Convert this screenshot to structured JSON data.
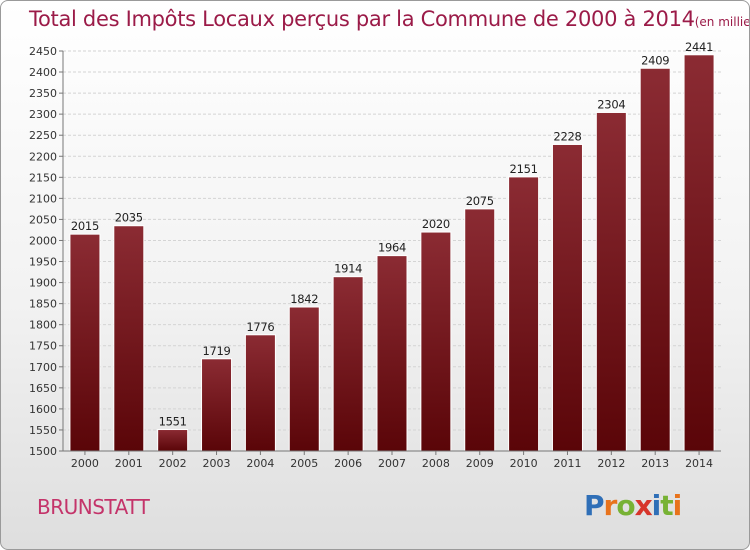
{
  "title": "Total des Impôts Locaux perçus par la Commune de 2000 à 2014",
  "title_unit": "(en milliers d'€)",
  "commune": "BRUNSTATT",
  "logo": {
    "letters": [
      "P",
      "r",
      "o",
      "x",
      "i",
      "t",
      "i"
    ],
    "colors": [
      "#2f6fb7",
      "#e8731c",
      "#77b234",
      "#d7352b",
      "#2f6fb7",
      "#77b234",
      "#e8731c"
    ]
  },
  "colors": {
    "bar_top": "#8b2b33",
    "bar_bottom": "#5a0508",
    "title": "#9b1b48"
  },
  "chart_data": {
    "type": "bar",
    "categories": [
      "2000",
      "2001",
      "2002",
      "2003",
      "2004",
      "2005",
      "2006",
      "2007",
      "2008",
      "2009",
      "2010",
      "2011",
      "2012",
      "2013",
      "2014"
    ],
    "values": [
      2015,
      2035,
      1551,
      1719,
      1776,
      1842,
      1914,
      1964,
      2020,
      2075,
      2151,
      2228,
      2304,
      2409,
      2441
    ],
    "ylim": [
      1500,
      2450
    ],
    "yticks": [
      1500,
      1550,
      1600,
      1650,
      1700,
      1750,
      1800,
      1850,
      1900,
      1950,
      2000,
      2050,
      2100,
      2150,
      2200,
      2250,
      2300,
      2350,
      2400,
      2450
    ],
    "grid": true,
    "xlabel": "",
    "ylabel": ""
  }
}
